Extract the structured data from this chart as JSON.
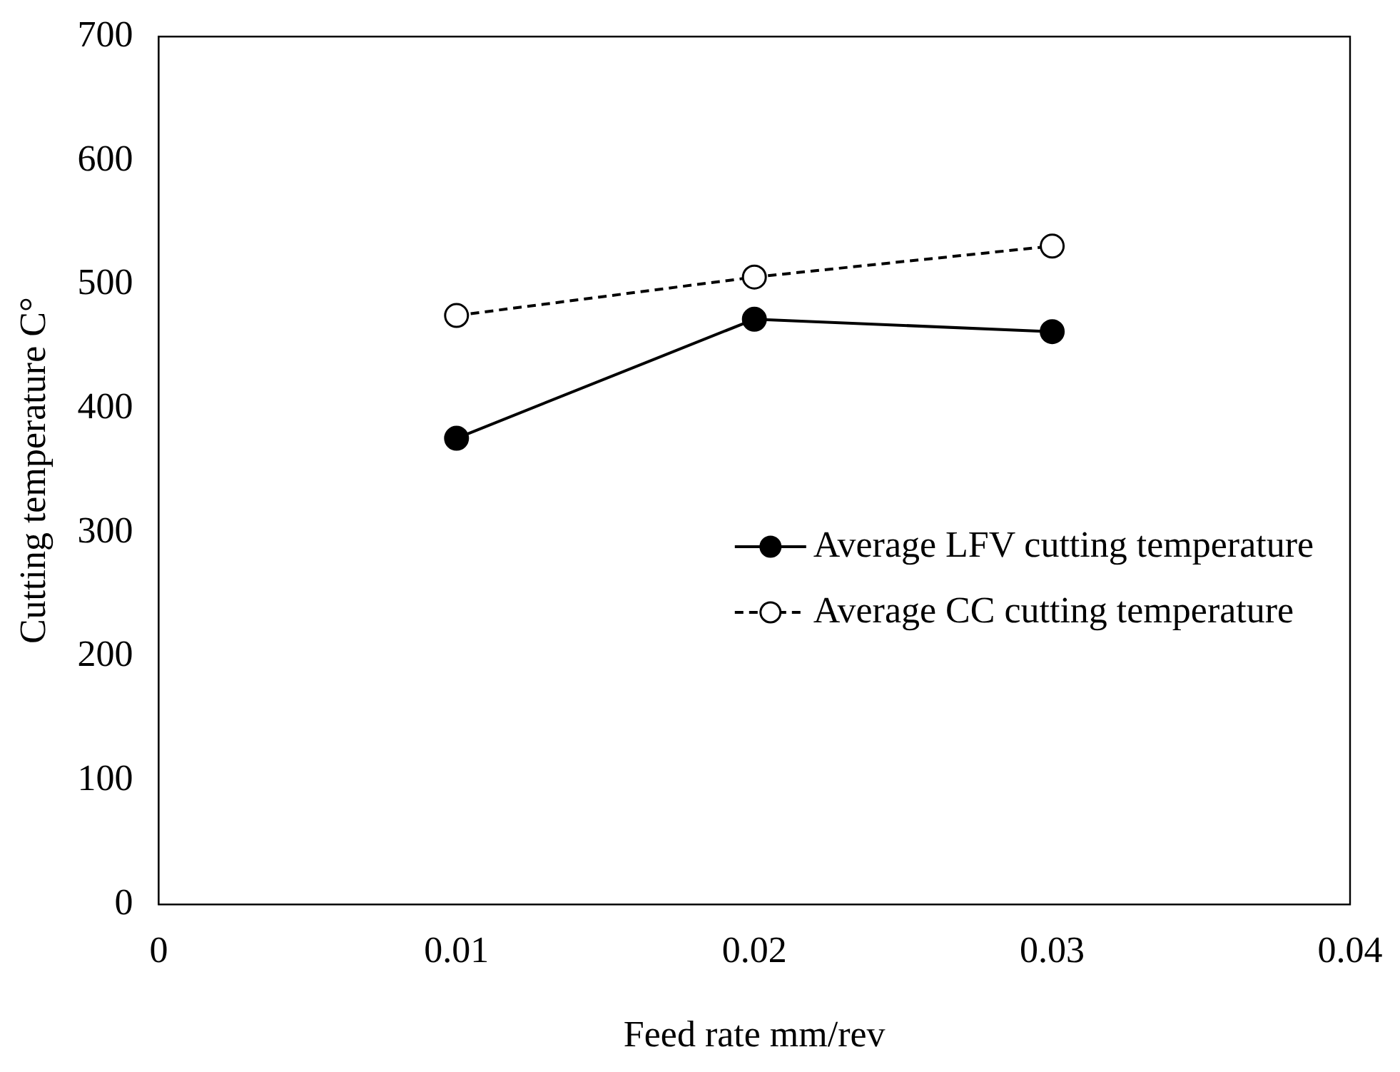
{
  "chart_data": {
    "type": "line",
    "xlabel": "Feed rate mm/rev",
    "ylabel": "Cutting temperature C°",
    "x": [
      0.01,
      0.02,
      0.03
    ],
    "series": [
      {
        "name": "Average LFV cutting temperature",
        "color": "#000000",
        "values": [
          376,
          472,
          462
        ],
        "line_style": "solid"
      },
      {
        "name": "Average CC cutting temperature",
        "color": "#000000",
        "values": [
          475,
          506,
          531
        ],
        "line_style": "dashed"
      }
    ],
    "xlim": [
      0,
      0.04
    ],
    "xticks": [
      0,
      0.01,
      0.02,
      0.03,
      0.04
    ],
    "ylim": [
      0,
      700
    ],
    "yticks": [
      0,
      100,
      200,
      300,
      400,
      500,
      600,
      700
    ],
    "grid": false,
    "legend": "right",
    "marker": "circle"
  }
}
